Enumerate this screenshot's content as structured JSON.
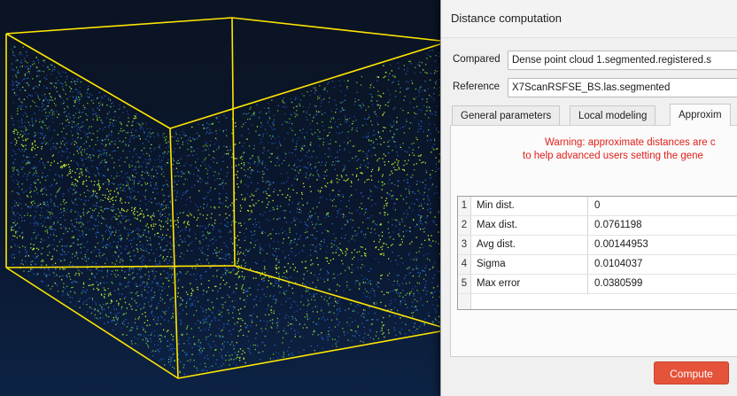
{
  "dialog": {
    "title": "Distance computation",
    "compared": {
      "label": "Compared",
      "value": "Dense point cloud 1.segmented.registered.s"
    },
    "reference": {
      "label": "Reference",
      "value": "X7ScanRSFSE_BS.las.segmented"
    },
    "tabs": [
      {
        "label": "General parameters",
        "active": false
      },
      {
        "label": "Local modeling",
        "active": false
      },
      {
        "label": "Approxim",
        "active": true
      }
    ],
    "warning": {
      "line1": "Warning: approximate distances are c",
      "line2": "to help advanced users setting the gene"
    },
    "results": [
      {
        "index": "1",
        "name": "Min dist.",
        "value": "0"
      },
      {
        "index": "2",
        "name": "Max dist.",
        "value": "0.0761198"
      },
      {
        "index": "3",
        "name": "Avg dist.",
        "value": "0.00144953"
      },
      {
        "index": "4",
        "name": "Sigma",
        "value": "0.0104037"
      },
      {
        "index": "5",
        "name": "Max error",
        "value": "0.0380599"
      }
    ],
    "compute_label": "Compute"
  },
  "viewport": {
    "bbox_color": "#ffe600",
    "point_colors": [
      "#d7ff2a",
      "#9cff3a",
      "#2f8dff",
      "#1e5ad0"
    ]
  }
}
